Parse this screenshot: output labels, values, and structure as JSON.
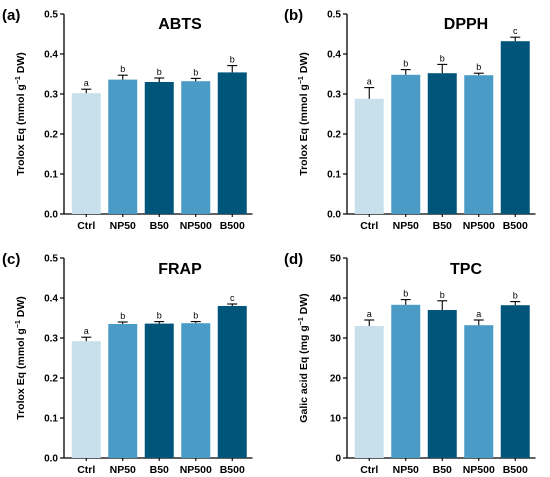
{
  "figure": {
    "colors": {
      "Ctrl": "#c8e0ec",
      "NP50": "#4a9cc7",
      "B50": "#00567a",
      "NP500": "#4a9cc7",
      "B500": "#00567a"
    }
  },
  "chart_data": [
    {
      "panel": "(a)",
      "title": "ABTS",
      "type": "bar",
      "categories": [
        "Ctrl",
        "NP50",
        "B50",
        "NP500",
        "B500"
      ],
      "values": [
        0.302,
        0.336,
        0.33,
        0.332,
        0.354
      ],
      "errors": [
        0.01,
        0.011,
        0.01,
        0.007,
        0.017
      ],
      "significance": [
        "a",
        "b",
        "b",
        "b",
        "b"
      ],
      "ylabel_prefix": "Trolox Eq (mmol g",
      "ylabel_sup": "−1",
      "ylabel_suffix": " DW)",
      "ylim": [
        0,
        0.5
      ],
      "yticks": [
        "0.0",
        "0.1",
        "0.2",
        "0.3",
        "0.4",
        "0.5"
      ],
      "grid": false
    },
    {
      "panel": "(b)",
      "title": "DPPH",
      "type": "bar",
      "categories": [
        "Ctrl",
        "NP50",
        "B50",
        "NP500",
        "B500"
      ],
      "values": [
        0.288,
        0.348,
        0.352,
        0.347,
        0.432
      ],
      "errors": [
        0.028,
        0.013,
        0.022,
        0.005,
        0.01
      ],
      "significance": [
        "a",
        "b",
        "b",
        "b",
        "c"
      ],
      "ylabel_prefix": "Trolox Eq (mmol g",
      "ylabel_sup": "−1",
      "ylabel_suffix": " DW)",
      "ylim": [
        0,
        0.5
      ],
      "yticks": [
        "0.0",
        "0.1",
        "0.2",
        "0.3",
        "0.4",
        "0.5"
      ],
      "grid": false
    },
    {
      "panel": "(c)",
      "title": "FRAP",
      "type": "bar",
      "categories": [
        "Ctrl",
        "NP50",
        "B50",
        "NP500",
        "B500"
      ],
      "values": [
        0.292,
        0.335,
        0.336,
        0.337,
        0.38
      ],
      "errors": [
        0.01,
        0.005,
        0.005,
        0.004,
        0.005
      ],
      "significance": [
        "a",
        "b",
        "b",
        "b",
        "c"
      ],
      "ylabel_prefix": "Trolox Eq (mmol g",
      "ylabel_sup": "−1",
      "ylabel_suffix": " DW)",
      "ylim": [
        0,
        0.5
      ],
      "yticks": [
        "0.0",
        "0.1",
        "0.2",
        "0.3",
        "0.4",
        "0.5"
      ],
      "grid": false
    },
    {
      "panel": "(d)",
      "title": "TPC",
      "type": "bar",
      "categories": [
        "Ctrl",
        "NP50",
        "B50",
        "NP500",
        "B500"
      ],
      "values": [
        33.0,
        38.3,
        37.0,
        33.2,
        38.2
      ],
      "errors": [
        1.5,
        1.3,
        2.3,
        1.3,
        0.9
      ],
      "significance": [
        "a",
        "b",
        "b",
        "a",
        "b"
      ],
      "ylabel_prefix": "Galic acid Eq (mg g",
      "ylabel_sup": "−1",
      "ylabel_suffix": " DW)",
      "ylim": [
        0,
        50
      ],
      "yticks": [
        "0",
        "10",
        "20",
        "30",
        "40",
        "50"
      ],
      "grid": false
    }
  ]
}
